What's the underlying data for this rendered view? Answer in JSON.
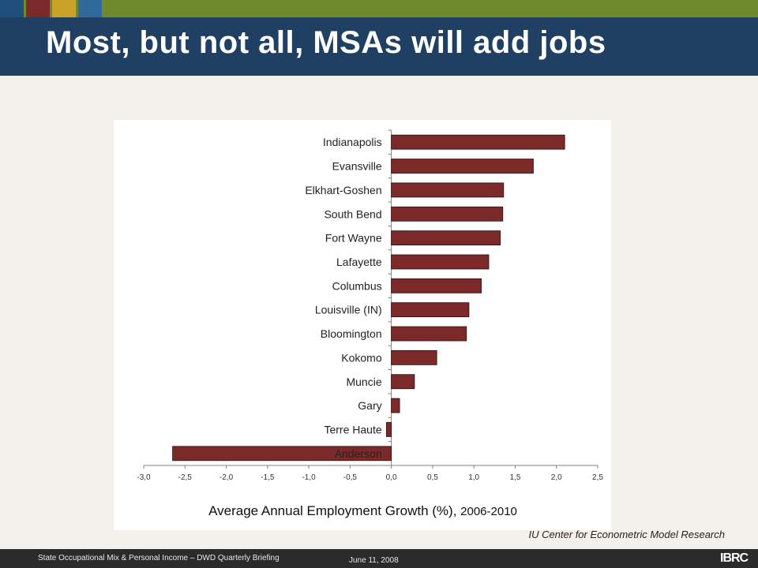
{
  "slide": {
    "title": "Most, but not all, MSAs will add jobs",
    "source": "IU Center for Econometric Model Research",
    "footer_left": "State Occupational Mix & Personal Income – DWD Quarterly Briefing",
    "footer_date": "June 11, 2008",
    "logo": "IBRC",
    "accent_colors": [
      "#1f4f7a",
      "#7a2a2a",
      "#c9a227",
      "#2f6a9a",
      "#6f8a2c"
    ]
  },
  "chart_data": {
    "type": "bar",
    "orientation": "horizontal",
    "categories": [
      "Indianapolis",
      "Evansville",
      "Elkhart-Goshen",
      "South Bend",
      "Fort Wayne",
      "Lafayette",
      "Columbus",
      "Louisville (IN)",
      "Bloomington",
      "Kokomo",
      "Muncie",
      "Gary",
      "Terre Haute",
      "Anderson"
    ],
    "values": [
      2.1,
      1.72,
      1.36,
      1.35,
      1.32,
      1.18,
      1.09,
      0.94,
      0.91,
      0.55,
      0.28,
      0.1,
      -0.06,
      -2.65
    ],
    "xlim": [
      -3.0,
      2.5
    ],
    "xticks": [
      "-3,0",
      "-2,5",
      "-2,0",
      "-1,5",
      "-1,0",
      "-0,5",
      "0,0",
      "0,5",
      "1,0",
      "1,5",
      "2,0",
      "2,5"
    ],
    "xlabel_main": "Average Annual Employment Growth (%), ",
    "xlabel_years": "2006-2010",
    "bar_color": "#7b2a29",
    "grid": false,
    "legend": "none"
  }
}
